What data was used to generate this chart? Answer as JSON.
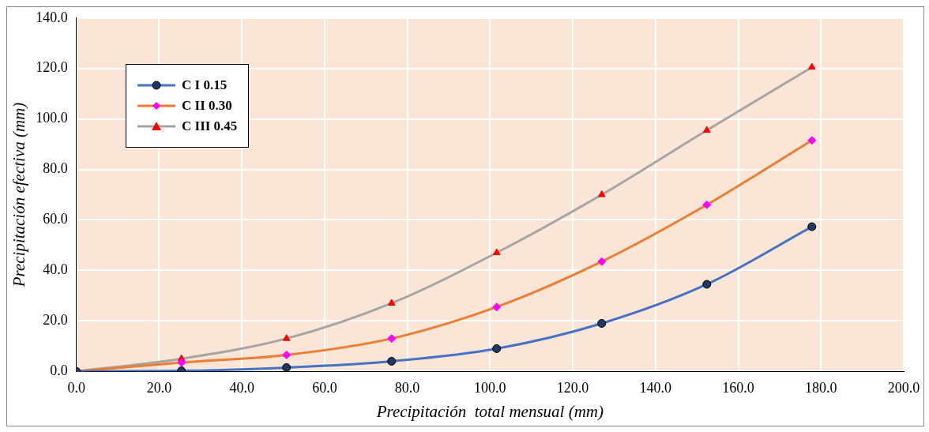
{
  "chart_data": {
    "type": "line",
    "xlabel": "Precipitación  total mensual (mm)",
    "ylabel": "Precipitación efectiva (mm)",
    "xlim": [
      0,
      200
    ],
    "xticks": [
      {
        "value": 0,
        "label": "0.0"
      },
      {
        "value": 20,
        "label": "20.0"
      },
      {
        "value": 40,
        "label": "40.0"
      },
      {
        "value": 60,
        "label": "60.0"
      },
      {
        "value": 80,
        "label": "80.0"
      },
      {
        "value": 100,
        "label": "100.0"
      },
      {
        "value": 120,
        "label": "120.0"
      },
      {
        "value": 140,
        "label": "140.0"
      },
      {
        "value": 160,
        "label": "160.0"
      },
      {
        "value": 180,
        "label": "180.0"
      },
      {
        "value": 200,
        "label": "200.0"
      }
    ],
    "ylim": [
      0,
      140
    ],
    "yticks": [
      {
        "value": 0,
        "label": "0.0"
      },
      {
        "value": 20,
        "label": "20.0"
      },
      {
        "value": 40,
        "label": "40.0"
      },
      {
        "value": 60,
        "label": "60.0"
      },
      {
        "value": 80,
        "label": "80.0"
      },
      {
        "value": 100,
        "label": "100.0"
      },
      {
        "value": 120,
        "label": "120.0"
      },
      {
        "value": 140,
        "label": "140.0"
      }
    ],
    "x": [
      0,
      25.4,
      50.8,
      76.2,
      101.6,
      127,
      152.4,
      177.8
    ],
    "series": [
      {
        "name": "C I  0.15",
        "color": "#4472c4",
        "marker": "circle",
        "colors": [
          "#1f3864",
          "#1f3864",
          "#1f3864",
          "#1f3864",
          "#1f3864",
          "#1f3864",
          "#1f3864",
          "#1f3864"
        ],
        "values": [
          0,
          0.2,
          1.5,
          4,
          9,
          19,
          34.5,
          57.3
        ]
      },
      {
        "name": "C II  0.30",
        "color": "#ed7d31",
        "marker": "diamond",
        "colors": [
          "#ff00ff",
          "#ff00ff",
          "#ff00ff",
          "#ff00ff",
          "#ff00ff",
          "#ff00ff",
          "#ff00ff",
          "#ff00ff"
        ],
        "values": [
          0,
          3.5,
          6.5,
          13,
          25.5,
          43.5,
          66,
          91.5
        ]
      },
      {
        "name": "C III  0.45",
        "color": "#a5a5a5",
        "marker": "triangle",
        "colors": [
          "#ff0000",
          "#ff0000",
          "#ff0000",
          "#ff0000",
          "#ff0000",
          "#ff0000",
          "#ff0000",
          "#ff0000"
        ],
        "values": [
          0,
          5,
          13,
          27,
          47,
          70,
          95.5,
          120.5
        ]
      }
    ],
    "grid": true,
    "legend": "top left"
  }
}
